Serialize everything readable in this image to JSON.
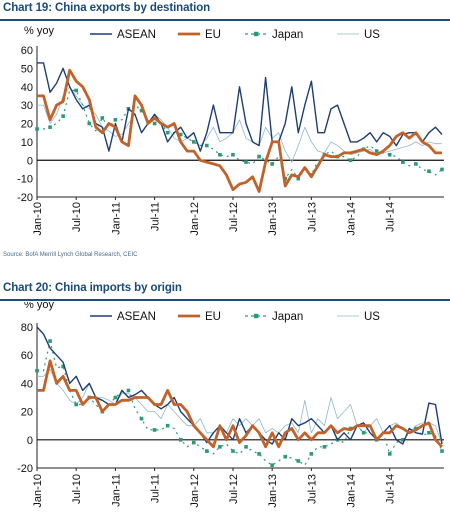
{
  "chart1_title": "Chart 19: China exports by destination",
  "chart2_title": "Chart 20: China imports by origin",
  "source": "Source: BofA Merrill Lynch Global Research, CEIC",
  "chart_data": [
    {
      "type": "line",
      "title": "Chart 19: China exports by destination",
      "ylabel": "% yoy",
      "ylim": [
        -20,
        60
      ],
      "yticks": [
        -20,
        -10,
        0,
        10,
        20,
        30,
        40,
        50,
        60
      ],
      "xtick_labels": [
        "Jan-10",
        "Jul-10",
        "Jan-11",
        "Jul-11",
        "Jan-12",
        "Jul-12",
        "Jan-13",
        "Jul-13",
        "Jan-14",
        "Jul-14"
      ],
      "x_start": "Jan-10",
      "legend_position": "top",
      "series": [
        {
          "name": "ASEAN",
          "color": "#1f3d73",
          "values": [
            53,
            53,
            37,
            42,
            50,
            40,
            33,
            28,
            30,
            20,
            18,
            5,
            20,
            10,
            28,
            25,
            15,
            20,
            25,
            20,
            10,
            15,
            18,
            12,
            15,
            5,
            15,
            30,
            15,
            15,
            15,
            40,
            20,
            10,
            8,
            45,
            10,
            10,
            20,
            40,
            15,
            30,
            43,
            15,
            15,
            28,
            30,
            20,
            10,
            10,
            12,
            15,
            10,
            15,
            13,
            8,
            14,
            15,
            15,
            10,
            15,
            18,
            14
          ]
        },
        {
          "name": "EU",
          "color": "#c0622a",
          "values": [
            35,
            35,
            22,
            30,
            32,
            49,
            43,
            40,
            33,
            18,
            15,
            20,
            18,
            10,
            8,
            35,
            30,
            20,
            23,
            20,
            18,
            20,
            10,
            5,
            5,
            0,
            -1,
            -2,
            -3,
            -8,
            -16,
            -13,
            -12,
            -9,
            -17,
            -1,
            10,
            10,
            -14,
            -8,
            -9,
            -4,
            -9,
            -3,
            3,
            2,
            2,
            4,
            4,
            5,
            6,
            4,
            3,
            5,
            8,
            13,
            15,
            12,
            15,
            10,
            8,
            4,
            4
          ]
        },
        {
          "name": "Japan",
          "color": "#2b9a77",
          "values": [
            17,
            17,
            18,
            20,
            24,
            38,
            38,
            30,
            20,
            16,
            23,
            18,
            22,
            22,
            28,
            30,
            27,
            22,
            20,
            20,
            15,
            15,
            14,
            12,
            10,
            8,
            8,
            6,
            3,
            2,
            3,
            0,
            -1,
            -2,
            2,
            0,
            -2,
            2,
            -10,
            -5,
            -10,
            -5,
            -8,
            0,
            3,
            5,
            2,
            2,
            0,
            2,
            6,
            8,
            5,
            4,
            3,
            2,
            -1,
            -3,
            -2,
            -5,
            -6,
            -8,
            -5
          ]
        },
        {
          "name": "US",
          "color": "#8fb8cf",
          "values": [
            30,
            30,
            20,
            25,
            35,
            40,
            35,
            30,
            28,
            25,
            18,
            16,
            13,
            14,
            20,
            25,
            15,
            20,
            25,
            22,
            18,
            12,
            10,
            12,
            10,
            8,
            12,
            18,
            10,
            12,
            15,
            22,
            12,
            10,
            8,
            18,
            12,
            15,
            5,
            -1,
            8,
            18,
            10,
            5,
            4,
            10,
            8,
            5,
            3,
            4,
            5,
            6,
            3,
            4,
            5,
            6,
            7,
            8,
            10,
            8,
            10,
            9,
            9
          ]
        }
      ]
    },
    {
      "type": "line",
      "title": "Chart 20: China imports by origin",
      "ylabel": "% yoy",
      "ylim": [
        -20,
        80
      ],
      "yticks": [
        -20,
        0,
        20,
        40,
        60,
        80
      ],
      "xtick_labels": [
        "Jan-10",
        "Jul-10",
        "Jan-11",
        "Jul-11",
        "Jan-12",
        "Jul-12",
        "Jan-13",
        "Jul-13",
        "Jan-14",
        "Jul-14"
      ],
      "x_start": "Jan-10",
      "legend_position": "top",
      "series": [
        {
          "name": "ASEAN",
          "color": "#1f3d73",
          "values": [
            80,
            75,
            65,
            60,
            55,
            40,
            45,
            35,
            40,
            30,
            28,
            25,
            25,
            35,
            30,
            32,
            35,
            30,
            25,
            22,
            25,
            30,
            20,
            15,
            10,
            5,
            -2,
            5,
            10,
            5,
            0,
            15,
            5,
            10,
            5,
            0,
            -3,
            5,
            0,
            15,
            10,
            12,
            15,
            10,
            5,
            10,
            0,
            5,
            0,
            10,
            12,
            5,
            0,
            5,
            10,
            0,
            -3,
            8,
            5,
            4,
            26,
            25,
            -3
          ]
        },
        {
          "name": "EU",
          "color": "#c0622a",
          "values": [
            35,
            35,
            56,
            40,
            45,
            35,
            35,
            25,
            30,
            30,
            20,
            25,
            25,
            28,
            28,
            30,
            30,
            30,
            25,
            25,
            35,
            25,
            25,
            20,
            10,
            5,
            0,
            -5,
            10,
            0,
            10,
            -2,
            3,
            10,
            5,
            -5,
            5,
            -5,
            5,
            8,
            0,
            5,
            0,
            5,
            5,
            10,
            5,
            8,
            7,
            10,
            10,
            10,
            0,
            5,
            5,
            10,
            8,
            5,
            7,
            10,
            12,
            0,
            -5
          ]
        },
        {
          "name": "Japan",
          "color": "#2b9a77",
          "values": [
            49,
            49,
            70,
            51,
            52,
            35,
            25,
            25,
            30,
            25,
            20,
            25,
            30,
            34,
            35,
            22,
            15,
            7,
            7,
            7,
            10,
            8,
            0,
            -5,
            -2,
            -5,
            -8,
            -10,
            -5,
            -3,
            -8,
            -10,
            -5,
            -8,
            -10,
            -15,
            -18,
            -15,
            -12,
            -13,
            -15,
            -18,
            -10,
            -5,
            -5,
            -3,
            0,
            -2,
            8,
            10,
            5,
            5,
            0,
            5,
            -10,
            -2,
            0,
            5,
            8,
            3,
            5,
            3,
            -8
          ]
        },
        {
          "name": "US",
          "color": "#8fb8cf",
          "values": [
            45,
            45,
            50,
            40,
            35,
            28,
            25,
            30,
            40,
            30,
            30,
            28,
            25,
            33,
            33,
            30,
            25,
            20,
            20,
            15,
            25,
            20,
            15,
            10,
            10,
            15,
            5,
            5,
            10,
            5,
            15,
            10,
            15,
            10,
            15,
            5,
            8,
            5,
            10,
            12,
            5,
            28,
            5,
            15,
            10,
            30,
            15,
            20,
            25,
            10,
            5,
            10,
            15,
            5,
            10,
            12,
            8,
            5,
            10,
            12,
            12,
            10,
            -3
          ]
        }
      ]
    }
  ]
}
